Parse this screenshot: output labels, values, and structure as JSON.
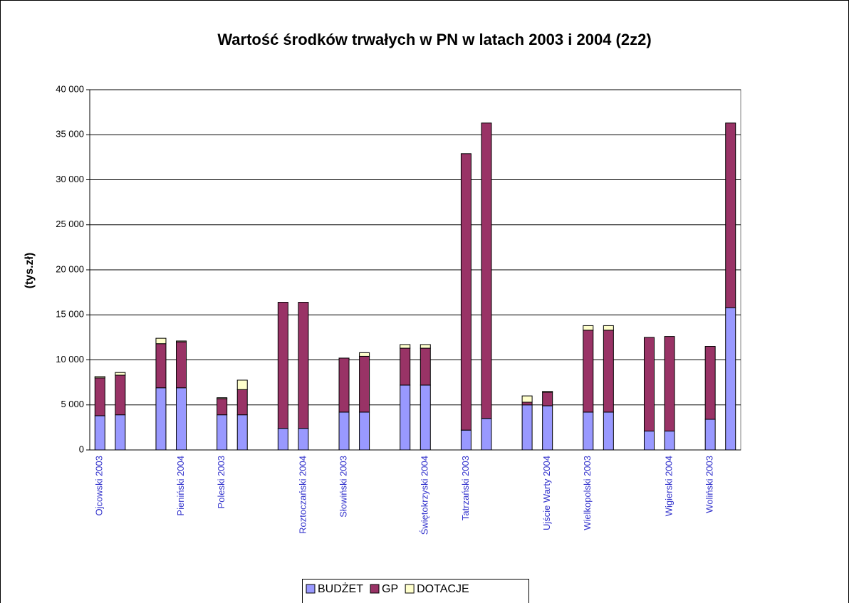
{
  "chart_data": {
    "type": "stacked_bar",
    "title": "Wartość środków trwałych w PN w latach 2003 i 2004 (2z2)",
    "y_label": "(tys.zł)",
    "categories": [
      "Ojcowski 2003",
      null,
      null,
      null,
      "Pieniński 2004",
      null,
      "Poleski 2003",
      null,
      null,
      null,
      "Roztoczański 2004",
      null,
      "Słowiński 2003",
      null,
      null,
      null,
      "Świętokrzyski 2004",
      null,
      "Tatrzański 2003",
      null,
      null,
      null,
      "Ujście Warty 2004",
      null,
      "Wielkopolski 2003",
      null,
      null,
      null,
      "Wigierski 2004",
      null,
      "Woliński 2003",
      null
    ],
    "series": [
      {
        "name": "BUDŻET",
        "color": "#9999ff",
        "values": [
          3800,
          3900,
          null,
          6900,
          6900,
          null,
          3900,
          3900,
          null,
          2400,
          2400,
          null,
          4200,
          4200,
          null,
          7200,
          7200,
          null,
          2200,
          3500,
          null,
          5000,
          4900,
          null,
          4200,
          4200,
          null,
          2100,
          2100,
          null,
          3400,
          15800
        ]
      },
      {
        "name": "GP",
        "color": "#993366",
        "values": [
          4200,
          4400,
          null,
          4900,
          5100,
          null,
          1800,
          2800,
          null,
          14000,
          14000,
          null,
          6000,
          6200,
          null,
          4100,
          4100,
          null,
          30700,
          32800,
          null,
          300,
          1500,
          null,
          9100,
          9100,
          null,
          10400,
          10500,
          null,
          8100,
          20500
        ]
      },
      {
        "name": "DOTACJE",
        "color": "#ffffcc",
        "values": [
          150,
          300,
          null,
          600,
          100,
          null,
          100,
          1050,
          null,
          0,
          0,
          null,
          0,
          400,
          null,
          400,
          400,
          null,
          0,
          0,
          null,
          700,
          100,
          null,
          500,
          500,
          null,
          0,
          0,
          null,
          0,
          0
        ]
      }
    ],
    "ylim": [
      0,
      40000
    ],
    "yticks": [
      0,
      {
        "value": 5000,
        "label": "5 000"
      },
      {
        "value": 10000,
        "label": "10 000"
      },
      {
        "value": 15000,
        "label": "15 000"
      },
      {
        "value": 20000,
        "label": "20 000"
      },
      {
        "value": 25000,
        "label": "25 000"
      },
      {
        "value": 30000,
        "label": "30 000"
      },
      {
        "value": 35000,
        "label": "35 000"
      },
      {
        "value": 40000,
        "label": "40 000"
      }
    ],
    "grid": true,
    "legend": "bottom"
  }
}
